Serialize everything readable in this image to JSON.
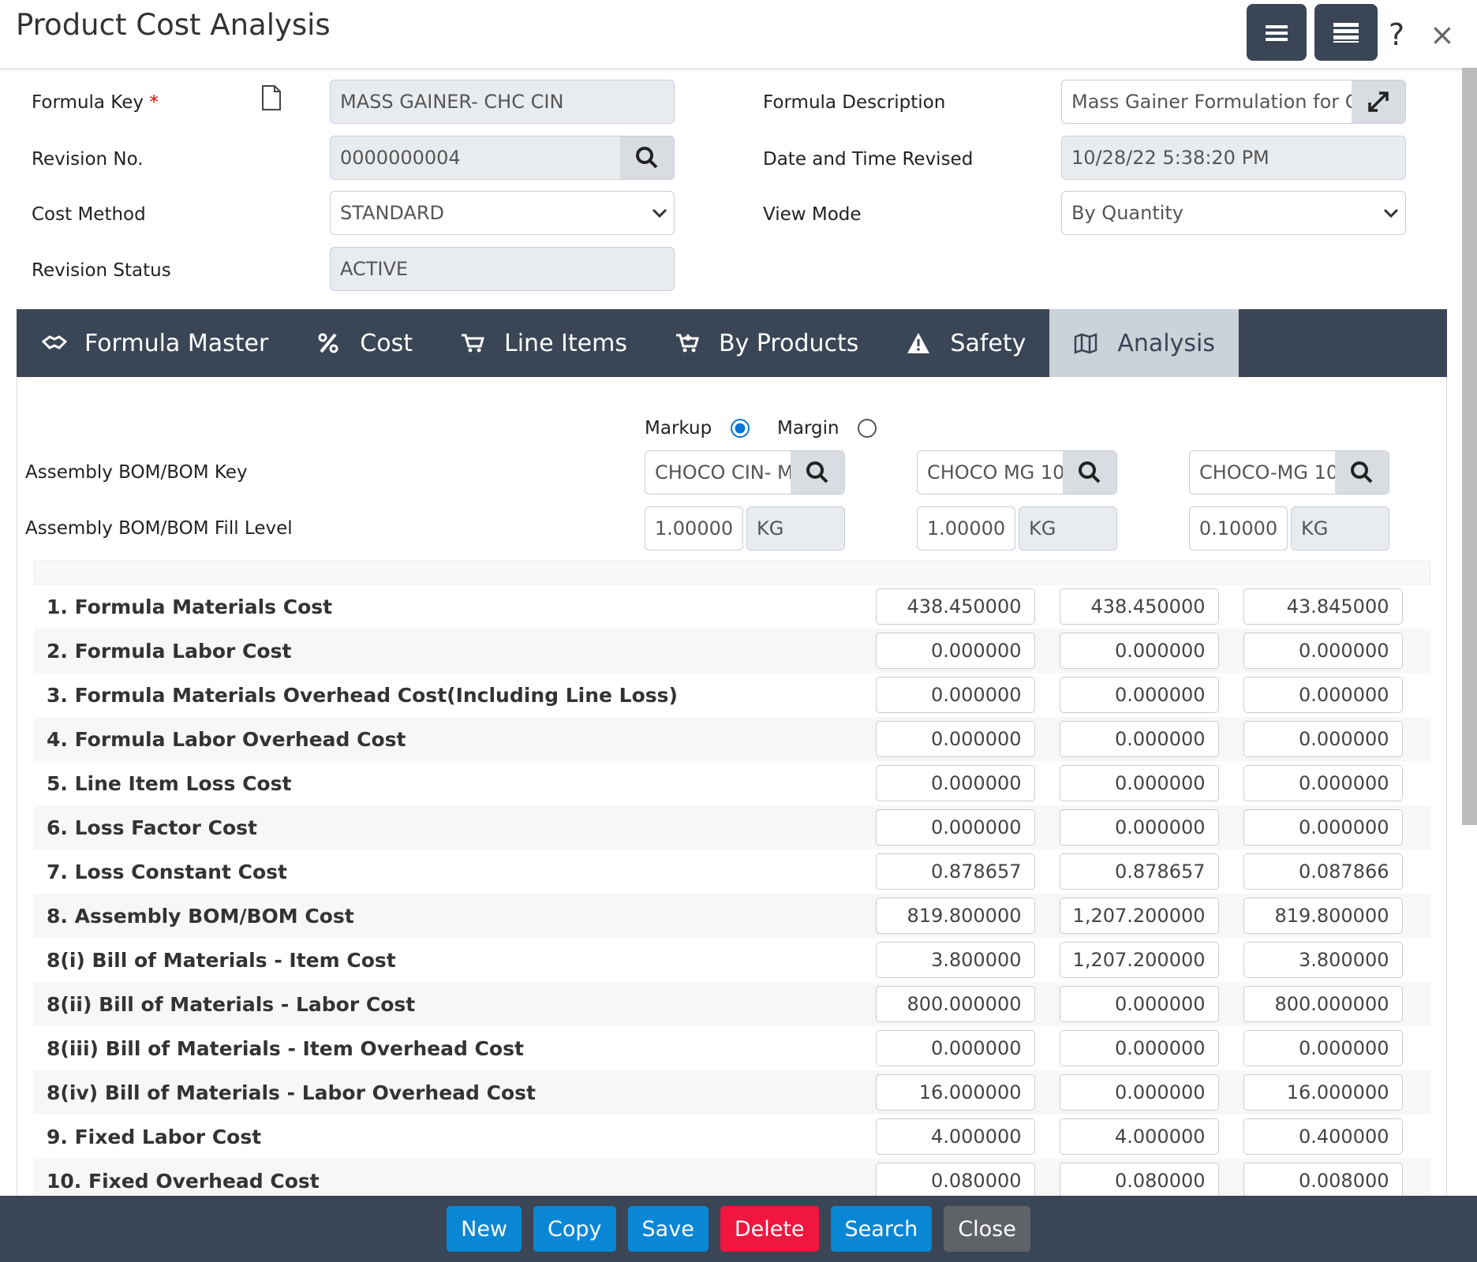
{
  "header": {
    "title": "Product Cost Analysis",
    "help": "?",
    "close": "×"
  },
  "form": {
    "formula_key": {
      "label": "Formula Key",
      "required": "*",
      "value": "MASS GAINER- CHC CIN"
    },
    "revision_no": {
      "label": "Revision No.",
      "value": "0000000004"
    },
    "cost_method": {
      "label": "Cost Method",
      "value": "STANDARD"
    },
    "revision_status": {
      "label": "Revision Status",
      "value": "ACTIVE"
    },
    "formula_description": {
      "label": "Formula Description",
      "value": "Mass Gainer Formulation for C"
    },
    "date_revised": {
      "label": "Date and Time Revised",
      "value": "10/28/22 5:38:20 PM"
    },
    "view_mode": {
      "label": "View Mode",
      "value": "By Quantity"
    }
  },
  "tabs": [
    "Formula Master",
    "Cost",
    "Line Items",
    "By Products",
    "Safety",
    "Analysis"
  ],
  "analysis": {
    "markup": "Markup",
    "margin": "Margin",
    "bom_key_label": "Assembly BOM/BOM Key",
    "fill_level_label": "Assembly BOM/BOM Fill Level",
    "columns": [
      {
        "bom_key": "CHOCO CIN- M",
        "fill": "1.00000",
        "uom": "KG"
      },
      {
        "bom_key": "CHOCO MG 10",
        "fill": "1.00000",
        "uom": "KG"
      },
      {
        "bom_key": "CHOCO-MG 10",
        "fill": "0.10000",
        "uom": "KG"
      }
    ],
    "rows": [
      {
        "label": "1. Formula Materials Cost",
        "values": [
          "438.450000",
          "438.450000",
          "43.845000"
        ]
      },
      {
        "label": "2. Formula Labor Cost",
        "values": [
          "0.000000",
          "0.000000",
          "0.000000"
        ]
      },
      {
        "label": "3. Formula Materials Overhead Cost(Including Line Loss)",
        "values": [
          "0.000000",
          "0.000000",
          "0.000000"
        ]
      },
      {
        "label": "4. Formula Labor Overhead Cost",
        "values": [
          "0.000000",
          "0.000000",
          "0.000000"
        ]
      },
      {
        "label": "5. Line Item Loss Cost",
        "values": [
          "0.000000",
          "0.000000",
          "0.000000"
        ]
      },
      {
        "label": "6. Loss Factor Cost",
        "values": [
          "0.000000",
          "0.000000",
          "0.000000"
        ]
      },
      {
        "label": "7. Loss Constant Cost",
        "values": [
          "0.878657",
          "0.878657",
          "0.087866"
        ]
      },
      {
        "label": "8. Assembly BOM/BOM Cost",
        "values": [
          "819.800000",
          "1,207.200000",
          "819.800000"
        ]
      },
      {
        "label": "8(i) Bill of Materials - Item Cost",
        "values": [
          "3.800000",
          "1,207.200000",
          "3.800000"
        ]
      },
      {
        "label": "8(ii) Bill of Materials - Labor Cost",
        "values": [
          "800.000000",
          "0.000000",
          "800.000000"
        ]
      },
      {
        "label": "8(iii) Bill of Materials - Item Overhead Cost",
        "values": [
          "0.000000",
          "0.000000",
          "0.000000"
        ]
      },
      {
        "label": "8(iv) Bill of Materials - Labor Overhead Cost",
        "values": [
          "16.000000",
          "0.000000",
          "16.000000"
        ]
      },
      {
        "label": "9. Fixed Labor Cost",
        "values": [
          "4.000000",
          "4.000000",
          "0.400000"
        ]
      },
      {
        "label": "10. Fixed Overhead Cost",
        "values": [
          "0.080000",
          "0.080000",
          "0.008000"
        ]
      }
    ]
  },
  "buttons": [
    "New",
    "Copy",
    "Save",
    "Delete",
    "Search",
    "Close"
  ]
}
